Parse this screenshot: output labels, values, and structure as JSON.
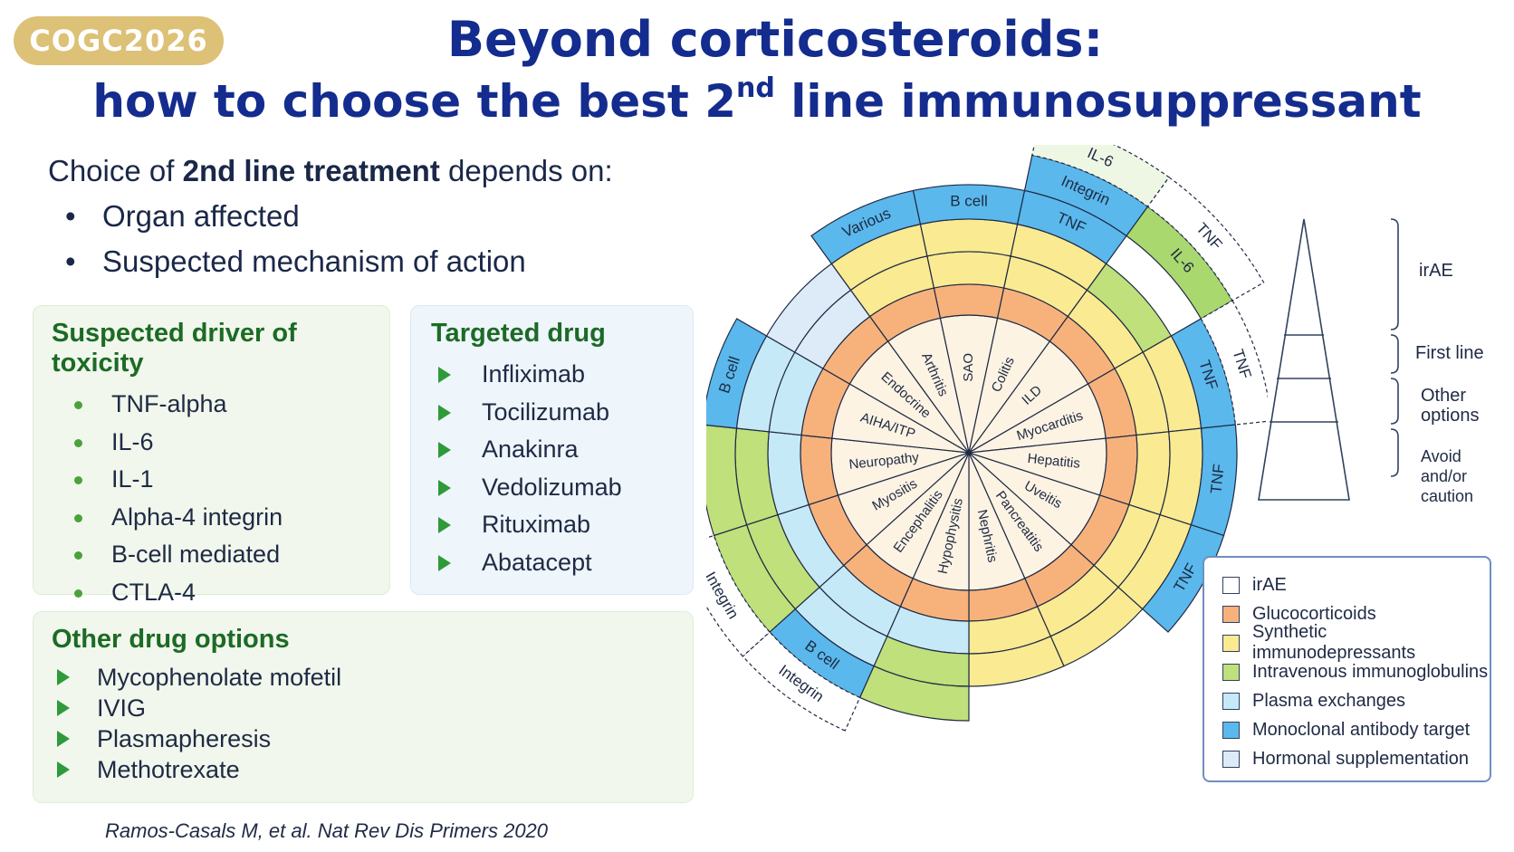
{
  "badge": "COGC2026",
  "title": {
    "line1": "Beyond corticosteroids:",
    "line2_pre": "how to choose the best 2",
    "line2_sup": "nd",
    "line2_post": " line immunosuppressant"
  },
  "intro": {
    "lead_pre": "Choice of ",
    "lead_bold": "2nd line treatment",
    "lead_post": " depends on:",
    "bullets": [
      "Organ affected",
      "Suspected mechanism of action"
    ]
  },
  "driver_card": {
    "heading": "Suspected driver of toxicity",
    "items": [
      "TNF-alpha",
      "IL-6",
      "IL-1",
      "Alpha-4 integrin",
      "B-cell mediated",
      "CTLA-4"
    ]
  },
  "drug_card": {
    "heading": "Targeted drug",
    "items": [
      "Infliximab",
      "Tocilizumab",
      "Anakinra",
      "Vedolizumab",
      "Rituximab",
      "Abatacept"
    ]
  },
  "other_card": {
    "heading": "Other drug options",
    "items": [
      "Mycophenolate mofetil",
      "IVIG",
      "Plasmapheresis",
      "Methotrexate"
    ]
  },
  "citation": "Ramos-Casals M, et al. Nat Rev Dis Primers 2020",
  "colors": {
    "irAE": "#fdf3e3",
    "glucocorticoids": "#f7b27c",
    "synthetic": "#faea92",
    "ivig": "#bfe07b",
    "plasma": "#c6e9f8",
    "mab": "#5ab8ec",
    "hormonal": "#dcebf7"
  },
  "wheel": {
    "organs": [
      "SAO",
      "Colitis",
      "ILD",
      "Myocarditis",
      "Hepatitis",
      "Uveitis",
      "Pancreatitis",
      "Nephritis",
      "Hypophysitis",
      "Encephalitis",
      "Myositis",
      "Neuropathy",
      "AIHA/ITP",
      "Endocrine",
      "Arthritis"
    ],
    "segments": [
      {
        "synthetic": true,
        "ivig": false,
        "plasma": false,
        "hormonal": false,
        "mab": "B cell",
        "mab_outer": "",
        "outer_dashed": ""
      },
      {
        "synthetic": true,
        "ivig": false,
        "plasma": false,
        "hormonal": false,
        "mab": "TNF",
        "mab_outer": "Integrin",
        "outer_dashed": "IL-6"
      },
      {
        "synthetic": true,
        "ivig": true,
        "plasma": false,
        "hormonal": false,
        "mab": "",
        "mab_outer": "IL-6",
        "outer_dashed": "TNF"
      },
      {
        "synthetic": true,
        "ivig": false,
        "plasma": false,
        "hormonal": false,
        "mab": "TNF",
        "mab_outer": "",
        "outer_dashed": "TNF"
      },
      {
        "synthetic": true,
        "ivig": false,
        "plasma": false,
        "hormonal": false,
        "mab": "TNF",
        "mab_outer": "",
        "outer_dashed": ""
      },
      {
        "synthetic": true,
        "ivig": false,
        "plasma": false,
        "hormonal": false,
        "mab": "TNF",
        "mab_outer": "",
        "outer_dashed": ""
      },
      {
        "synthetic": true,
        "ivig": false,
        "plasma": false,
        "hormonal": false,
        "mab": "",
        "mab_outer": "",
        "outer_dashed": ""
      },
      {
        "synthetic": true,
        "ivig": false,
        "plasma": false,
        "hormonal": false,
        "mab": "",
        "mab_outer": "",
        "outer_dashed": ""
      },
      {
        "synthetic": false,
        "ivig": true,
        "plasma": true,
        "hormonal": false,
        "mab": "",
        "mab_outer": "",
        "outer_dashed": ""
      },
      {
        "synthetic": false,
        "ivig": false,
        "plasma": true,
        "hormonal": false,
        "mab": "B cell",
        "mab_outer": "",
        "outer_dashed": "Integrin"
      },
      {
        "synthetic": false,
        "ivig": true,
        "plasma": true,
        "hormonal": false,
        "mab": "",
        "mab_outer": "",
        "outer_dashed": "Integrin"
      },
      {
        "synthetic": false,
        "ivig": true,
        "plasma": true,
        "hormonal": false,
        "mab": "",
        "mab_outer": "",
        "outer_dashed": ""
      },
      {
        "synthetic": false,
        "ivig": false,
        "plasma": true,
        "hormonal": false,
        "mab": "B cell",
        "mab_outer": "",
        "outer_dashed": ""
      },
      {
        "synthetic": false,
        "ivig": false,
        "plasma": false,
        "hormonal": true,
        "mab": "",
        "mab_outer": "",
        "outer_dashed": ""
      },
      {
        "synthetic": true,
        "ivig": false,
        "plasma": false,
        "hormonal": false,
        "mab": "Various",
        "mab_outer": "",
        "outer_dashed": ""
      }
    ]
  },
  "pyramid": {
    "labels": [
      "irAE",
      "First line",
      "Other options",
      "Avoid and/or caution"
    ]
  },
  "legend": [
    {
      "label": "irAE",
      "color": "#ffffff"
    },
    {
      "label": "Glucocorticoids",
      "color": "#f7b27c"
    },
    {
      "label": "Synthetic immunodepressants",
      "color": "#faea92"
    },
    {
      "label": "Intravenous immunoglobulins",
      "color": "#bfe07b"
    },
    {
      "label": "Plasma exchanges",
      "color": "#c6e9f8"
    },
    {
      "label": "Monoclonal antibody target",
      "color": "#5ab8ec"
    },
    {
      "label": "Hormonal supplementation",
      "color": "#dcebf7"
    }
  ]
}
